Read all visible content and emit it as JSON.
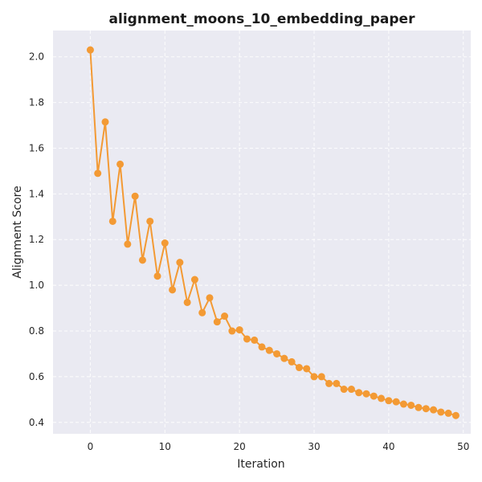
{
  "chart_data": {
    "type": "line",
    "title": "alignment_moons_10_embedding_paper",
    "xlabel": "Iteration",
    "ylabel": "Alignment Score",
    "xlim": [
      -5,
      51
    ],
    "ylim": [
      0.35,
      2.115
    ],
    "x_ticks": [
      0,
      10,
      20,
      30,
      40,
      50
    ],
    "y_ticks": [
      0.4,
      0.6,
      0.8,
      1.0,
      1.2,
      1.4,
      1.6,
      1.8,
      2.0
    ],
    "y_tick_labels": [
      "0.4",
      "0.6",
      "0.8",
      "1.0",
      "1.2",
      "1.4",
      "1.6",
      "1.8",
      "2.0"
    ],
    "grid": true,
    "background_color": "#eaeaf2",
    "line_color": "#f39a34",
    "x": [
      0,
      1,
      2,
      3,
      4,
      5,
      6,
      7,
      8,
      9,
      10,
      11,
      12,
      13,
      14,
      15,
      16,
      17,
      18,
      19,
      20,
      21,
      22,
      23,
      24,
      25,
      26,
      27,
      28,
      29,
      30,
      31,
      32,
      33,
      34,
      35,
      36,
      37,
      38,
      39,
      40,
      41,
      42,
      43,
      44,
      45,
      46,
      47,
      48,
      49
    ],
    "y": [
      2.03,
      1.49,
      1.715,
      1.28,
      1.53,
      1.18,
      1.39,
      1.11,
      1.28,
      1.04,
      1.185,
      0.98,
      1.1,
      0.925,
      1.025,
      0.88,
      0.945,
      0.84,
      0.865,
      0.8,
      0.805,
      0.765,
      0.76,
      0.73,
      0.715,
      0.7,
      0.68,
      0.665,
      0.64,
      0.635,
      0.6,
      0.6,
      0.57,
      0.57,
      0.545,
      0.545,
      0.53,
      0.525,
      0.515,
      0.505,
      0.495,
      0.49,
      0.48,
      0.475,
      0.465,
      0.46,
      0.455,
      0.445,
      0.44,
      0.43
    ]
  }
}
